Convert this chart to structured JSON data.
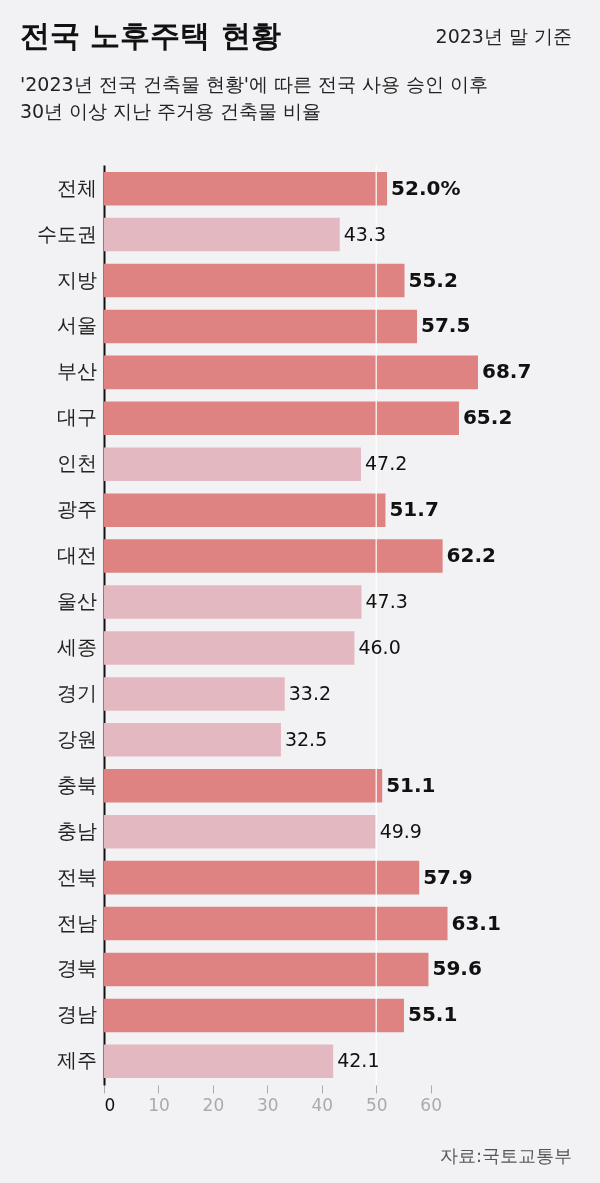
{
  "chart_data": {
    "type": "bar",
    "orientation": "horizontal",
    "title": "전국 노후주택 현황",
    "subtitle": [
      "'2023년 전국 건축물 현황'에 따른 전국 사용 승인 이후",
      "30년 이상 지난 주거용 건축물 비율"
    ],
    "categories": [
      "전체",
      "수도권",
      "지방",
      "서울",
      "부산",
      "대구",
      "인천",
      "광주",
      "대전",
      "울산",
      "세종",
      "경기",
      "강원",
      "충북",
      "충남",
      "전북",
      "전남",
      "경북",
      "경남",
      "제주"
    ],
    "values": [
      52.0,
      43.3,
      55.2,
      57.5,
      68.7,
      65.2,
      47.2,
      51.7,
      62.2,
      47.3,
      46.0,
      33.2,
      32.5,
      51.1,
      49.9,
      57.9,
      63.1,
      59.6,
      55.1,
      42.1
    ],
    "value_labels": [
      "52.0%",
      "43.3",
      "55.2",
      "57.5",
      "68.7",
      "65.2",
      "47.2",
      "51.7",
      "62.2",
      "47.3",
      "46.0",
      "33.2",
      "32.5",
      "51.1",
      "49.9",
      "57.9",
      "63.1",
      "59.6",
      "55.1",
      "42.1"
    ],
    "colors": [
      "#de8282",
      "#e4b8c0",
      "#de8282",
      "#de8282",
      "#de8282",
      "#de8282",
      "#e4b8c0",
      "#de8282",
      "#de8282",
      "#e4b8c0",
      "#e4b8c0",
      "#e4b8c0",
      "#e4b8c0",
      "#de8282",
      "#e4b8c0",
      "#de8282",
      "#de8282",
      "#de8282",
      "#de8282",
      "#e4b8c0"
    ],
    "xlim": [
      0,
      68.7
    ],
    "xticks": [
      0,
      10,
      20,
      30,
      40,
      50,
      60
    ],
    "ref_lines": [
      {
        "axis": "x",
        "value": 50,
        "color": "#ffffff"
      }
    ],
    "annotations": [
      "2023년 말 기준",
      "자료:국토교통부"
    ],
    "grid": false
  }
}
